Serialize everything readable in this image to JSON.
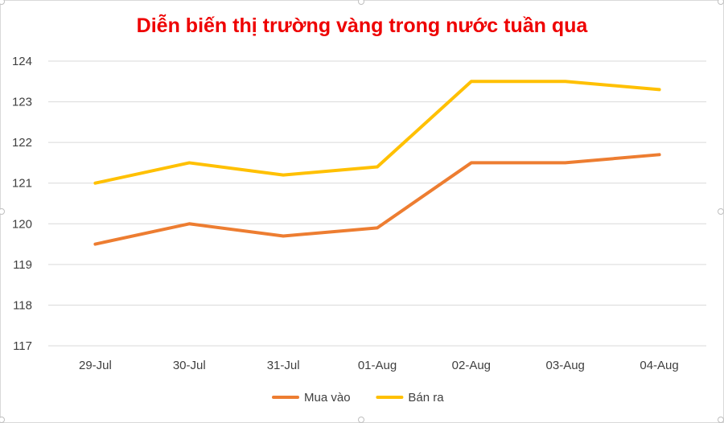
{
  "chart_data": {
    "type": "line",
    "title": "Diễn biến thị trường vàng trong nước tuần qua",
    "categories": [
      "29-Jul",
      "30-Jul",
      "31-Jul",
      "01-Aug",
      "02-Aug",
      "03-Aug",
      "04-Aug"
    ],
    "series": [
      {
        "name": "Mua vào",
        "color": "#ED7D31",
        "values": [
          119.5,
          120.0,
          119.7,
          119.9,
          121.5,
          121.5,
          121.7
        ]
      },
      {
        "name": "Bán ra",
        "color": "#FFC000",
        "values": [
          121.0,
          121.5,
          121.2,
          121.4,
          123.5,
          123.5,
          123.3
        ]
      }
    ],
    "ylim": [
      117,
      124
    ],
    "yticks": [
      117,
      118,
      119,
      120,
      121,
      122,
      123,
      124
    ],
    "grid": true,
    "legend": "bottom",
    "xlabel": "",
    "ylabel": ""
  }
}
